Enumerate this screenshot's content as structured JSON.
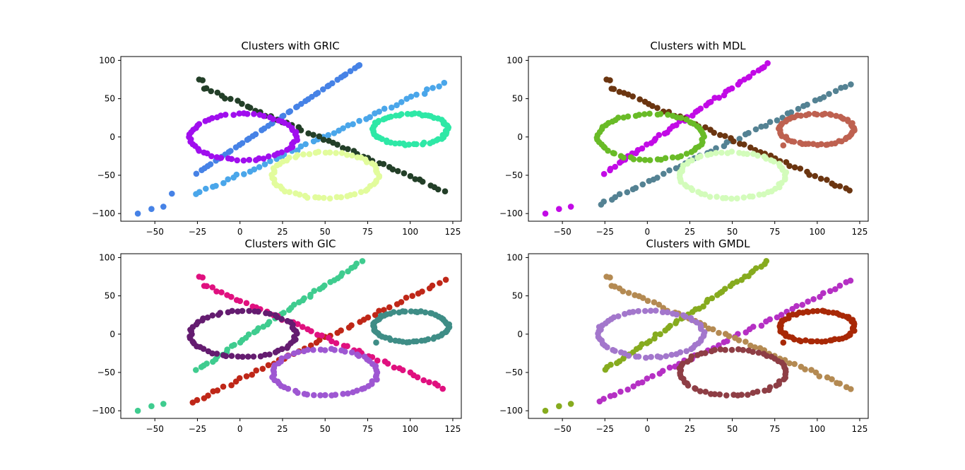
{
  "chart_data": [
    {
      "type": "scatter",
      "title": "Clusters with GRIC",
      "xlim": [
        -70,
        130
      ],
      "ylim": [
        -110,
        105
      ],
      "xticks": [
        -50,
        -25,
        0,
        25,
        50,
        75,
        100,
        125
      ],
      "yticks": [
        -100,
        -50,
        0,
        50,
        100
      ],
      "series": [
        {
          "color": "#4682e6",
          "shape": "line",
          "from": [
            -25,
            -47
          ],
          "to": [
            71,
            95
          ],
          "extra": [
            [
              -60,
              -100
            ],
            [
              -52,
              -94
            ],
            [
              -45,
              -91
            ],
            [
              -40,
              -74
            ]
          ]
        },
        {
          "color": "#4aa6ea",
          "shape": "line",
          "from": [
            -26,
            -75
          ],
          "to": [
            120,
            70
          ]
        },
        {
          "color": "#233f28",
          "shape": "line",
          "from": [
            -20,
            63
          ],
          "to": [
            120,
            -71
          ],
          "extra": [
            [
              -24,
              75
            ],
            [
              -22,
              74
            ],
            [
              -21,
              63
            ]
          ]
        },
        {
          "color": "#a00eee",
          "shape": "ellipse",
          "center": [
            2,
            0
          ],
          "radii": [
            31,
            30
          ]
        },
        {
          "color": "#2ee8a6",
          "shape": "ellipse",
          "center": [
            100,
            10
          ],
          "radii": [
            22,
            20
          ]
        },
        {
          "color": "#e2fc9c",
          "shape": "ellipse",
          "center": [
            50,
            -50
          ],
          "radii": [
            31,
            30
          ]
        }
      ]
    },
    {
      "type": "scatter",
      "title": "Clusters with MDL",
      "xlim": [
        -70,
        130
      ],
      "ylim": [
        -110,
        105
      ],
      "xticks": [
        -50,
        -25,
        0,
        25,
        50,
        75,
        100,
        125
      ],
      "yticks": [
        -100,
        -50,
        0,
        50,
        100
      ],
      "series": [
        {
          "color": "#c20ae6",
          "shape": "line",
          "from": [
            -25,
            -47
          ],
          "to": [
            71,
            95
          ],
          "extra": [
            [
              -60,
              -100
            ],
            [
              -52,
              -94
            ],
            [
              -45,
              -91
            ]
          ]
        },
        {
          "color": "#548293",
          "shape": "line",
          "from": [
            -28,
            -89
          ],
          "to": [
            120,
            70
          ]
        },
        {
          "color": "#6b3510",
          "shape": "line",
          "from": [
            -20,
            63
          ],
          "to": [
            120,
            -71
          ],
          "extra": [
            [
              -24,
              75
            ],
            [
              -22,
              74
            ],
            [
              -21,
              63
            ]
          ]
        },
        {
          "color": "#69bb27",
          "shape": "ellipse",
          "center": [
            2,
            0
          ],
          "radii": [
            31,
            30
          ]
        },
        {
          "color": "#be6150",
          "shape": "ellipse",
          "center": [
            100,
            10
          ],
          "radii": [
            22,
            20
          ],
          "extra": [
            [
              80,
              -11
            ]
          ]
        },
        {
          "color": "#d3fcbb",
          "shape": "ellipse",
          "center": [
            50,
            -50
          ],
          "radii": [
            31,
            30
          ]
        }
      ]
    },
    {
      "type": "scatter",
      "title": "Clusters with GIC",
      "xlim": [
        -70,
        130
      ],
      "ylim": [
        -110,
        105
      ],
      "xticks": [
        -50,
        -25,
        0,
        25,
        50,
        75,
        100,
        125
      ],
      "yticks": [
        -100,
        -50,
        0,
        50,
        100
      ],
      "series": [
        {
          "color": "#3fcc8f",
          "shape": "line",
          "from": [
            -25,
            -47
          ],
          "to": [
            71,
            95
          ],
          "extra": [
            [
              -60,
              -100
            ],
            [
              -52,
              -94
            ],
            [
              -45,
              -91
            ]
          ]
        },
        {
          "color": "#bf2718",
          "shape": "line",
          "from": [
            -28,
            -89
          ],
          "to": [
            120,
            70
          ]
        },
        {
          "color": "#e0107f",
          "shape": "line",
          "from": [
            -20,
            63
          ],
          "to": [
            120,
            -71
          ],
          "extra": [
            [
              -24,
              75
            ],
            [
              -22,
              74
            ],
            [
              -21,
              63
            ]
          ]
        },
        {
          "color": "#641c70",
          "shape": "ellipse",
          "center": [
            2,
            0
          ],
          "radii": [
            31,
            30
          ]
        },
        {
          "color": "#3e8d86",
          "shape": "ellipse",
          "center": [
            100,
            10
          ],
          "radii": [
            22,
            20
          ],
          "extra": [
            [
              80,
              -11
            ]
          ]
        },
        {
          "color": "#9e57d2",
          "shape": "ellipse",
          "center": [
            50,
            -50
          ],
          "radii": [
            31,
            30
          ]
        }
      ]
    },
    {
      "type": "scatter",
      "title": "Clusters with GMDL",
      "xlim": [
        -70,
        130
      ],
      "ylim": [
        -110,
        105
      ],
      "xticks": [
        -50,
        -25,
        0,
        25,
        50,
        75,
        100,
        125
      ],
      "yticks": [
        -100,
        -50,
        0,
        50,
        100
      ],
      "series": [
        {
          "color": "#86ab1e",
          "shape": "line",
          "from": [
            -25,
            -47
          ],
          "to": [
            71,
            95
          ],
          "extra": [
            [
              -60,
              -100
            ],
            [
              -52,
              -94
            ],
            [
              -45,
              -91
            ]
          ]
        },
        {
          "color": "#b530c4",
          "shape": "line",
          "from": [
            -28,
            -89
          ],
          "to": [
            120,
            70
          ]
        },
        {
          "color": "#b48a52",
          "shape": "line",
          "from": [
            -20,
            63
          ],
          "to": [
            120,
            -71
          ],
          "extra": [
            [
              -24,
              75
            ],
            [
              -22,
              74
            ],
            [
              -21,
              63
            ]
          ]
        },
        {
          "color": "#a377cc",
          "shape": "ellipse",
          "center": [
            2,
            0
          ],
          "radii": [
            31,
            30
          ]
        },
        {
          "color": "#a82806",
          "shape": "ellipse",
          "center": [
            100,
            10
          ],
          "radii": [
            22,
            20
          ],
          "extra": [
            [
              80,
              -11
            ]
          ]
        },
        {
          "color": "#8e3e45",
          "shape": "ellipse",
          "center": [
            50,
            -50
          ],
          "radii": [
            31,
            30
          ]
        }
      ]
    }
  ]
}
